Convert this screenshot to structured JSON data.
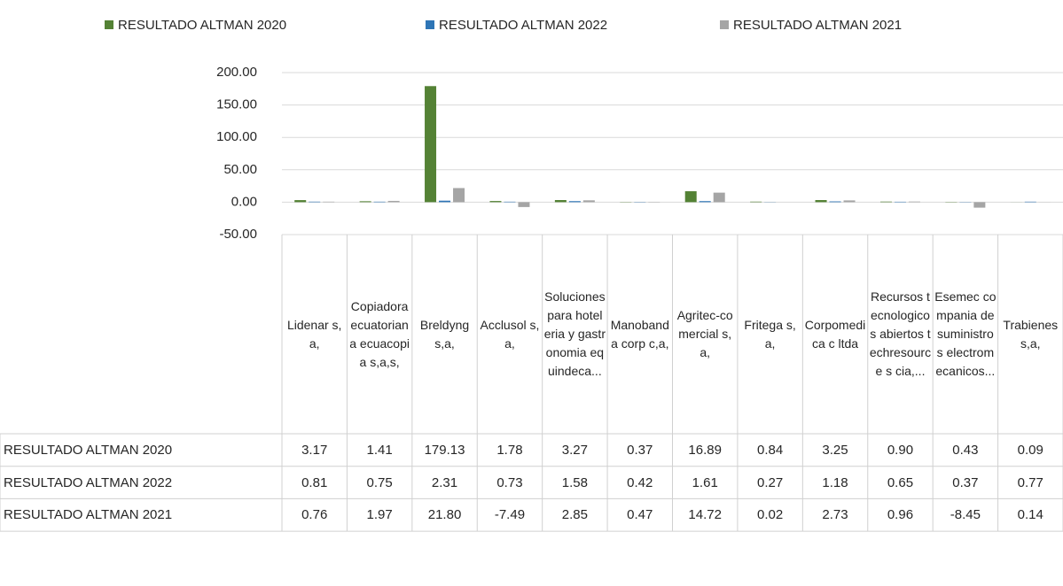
{
  "chart_data": {
    "type": "bar",
    "categories": [
      "Lidenar s,a,",
      "Copiadora ecuatoriana ecuacopia s,a,s,",
      "Breldyng s,a,",
      "Acclusol s,a,",
      "Soluciones para hoteleria y gastronomia equindeca...",
      "Manobanda corp c,a,",
      "Agritec-comercial s,a,",
      "Fritega s,a,",
      "Corpomedica c ltda",
      "Recursos tecnologicos abiertos techresource s cia,...",
      "Esemec compania de suministros electromecanicos...",
      "Trabienes s,a,"
    ],
    "series": [
      {
        "name": "RESULTADO ALTMAN 2020",
        "color": "#548235",
        "values": [
          3.17,
          1.41,
          179.13,
          1.78,
          3.27,
          0.37,
          16.89,
          0.84,
          3.25,
          0.9,
          0.43,
          0.09
        ],
        "value_labels": [
          "3.17",
          "1.41",
          "179.13",
          "1.78",
          "3.27",
          "0.37",
          "16.89",
          "0.84",
          "3.25",
          "0.90",
          "0.43",
          "0.09"
        ]
      },
      {
        "name": "RESULTADO ALTMAN 2022",
        "color": "#2e75b6",
        "values": [
          0.81,
          0.75,
          2.31,
          0.73,
          1.58,
          0.42,
          1.61,
          0.27,
          1.18,
          0.65,
          0.37,
          0.77
        ],
        "value_labels": [
          "0.81",
          "0.75",
          "2.31",
          "0.73",
          "1.58",
          "0.42",
          "1.61",
          "0.27",
          "1.18",
          "0.65",
          "0.37",
          "0.77"
        ]
      },
      {
        "name": "RESULTADO ALTMAN 2021",
        "color": "#a5a5a5",
        "values": [
          0.76,
          1.97,
          21.8,
          -7.49,
          2.85,
          0.47,
          14.72,
          0.02,
          2.73,
          0.96,
          -8.45,
          0.14
        ],
        "value_labels": [
          "0.76",
          "1.97",
          "21.80",
          "-7.49",
          "2.85",
          "0.47",
          "14.72",
          "0.02",
          "2.73",
          "0.96",
          "-8.45",
          "0.14"
        ]
      }
    ],
    "ylim": [
      -50,
      200
    ],
    "yticks": [
      {
        "value": -50,
        "label": "-50.00"
      },
      {
        "value": 0,
        "label": "0.00"
      },
      {
        "value": 50,
        "label": "50.00"
      },
      {
        "value": 100,
        "label": "100.00"
      },
      {
        "value": 150,
        "label": "150.00"
      },
      {
        "value": 200,
        "label": "200.00"
      }
    ],
    "grid": true,
    "legend": "top"
  }
}
